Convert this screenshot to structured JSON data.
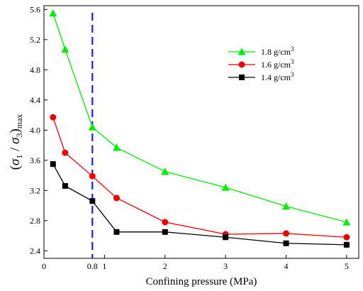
{
  "chart_data": {
    "type": "line",
    "title": "",
    "xlabel": "Confining pressure (MPa)",
    "ylabel": {
      "paren_open": "(",
      "sigma1": "σ",
      "sub1": "1",
      "slash": " / ",
      "sigma3": "σ",
      "sub3": "3",
      "paren_close": ")",
      "sub_max": "max"
    },
    "xlim": [
      0,
      5.2
    ],
    "ylim": [
      2.3,
      5.65
    ],
    "xticks": [
      {
        "value": 0,
        "label": "0"
      },
      {
        "value": 0.8,
        "label": "0.8"
      },
      {
        "value": 1,
        "label": "1"
      },
      {
        "value": 2,
        "label": "2"
      },
      {
        "value": 3,
        "label": "3"
      },
      {
        "value": 4,
        "label": "4"
      },
      {
        "value": 5,
        "label": "5"
      }
    ],
    "yticks": [
      {
        "value": 2.4,
        "label": "2.4"
      },
      {
        "value": 2.8,
        "label": "2.8"
      },
      {
        "value": 3.2,
        "label": "3.2"
      },
      {
        "value": 3.6,
        "label": "3.6"
      },
      {
        "value": 4.0,
        "label": "4.0"
      },
      {
        "value": 4.4,
        "label": "4.4"
      },
      {
        "value": 4.8,
        "label": "4.8"
      },
      {
        "value": 5.2,
        "label": "5.2"
      },
      {
        "value": 5.6,
        "label": "5.6"
      }
    ],
    "grid": false,
    "legend_position": "top-right",
    "reference_line": {
      "x": 0.8,
      "color": "#1a1aff",
      "style": "dashed"
    },
    "series": [
      {
        "name": "1.8 g/cm",
        "unit_superscript": "3",
        "marker": "triangle",
        "color": "#00ee00",
        "x": [
          0.15,
          0.35,
          0.8,
          1.2,
          2,
          3,
          4,
          5
        ],
        "y": [
          5.55,
          5.07,
          4.04,
          3.77,
          3.45,
          3.24,
          2.99,
          2.78
        ]
      },
      {
        "name": "1.6 g/cm",
        "unit_superscript": "3",
        "marker": "circle",
        "color": "#ee0000",
        "x": [
          0.15,
          0.35,
          0.8,
          1.2,
          2,
          3,
          4,
          5
        ],
        "y": [
          4.17,
          3.7,
          3.39,
          3.1,
          2.78,
          2.62,
          2.63,
          2.58
        ]
      },
      {
        "name": "1.4 g/cm",
        "unit_superscript": "3",
        "marker": "square",
        "color": "#000000",
        "x": [
          0.15,
          0.35,
          0.8,
          1.2,
          2,
          3,
          4,
          5
        ],
        "y": [
          3.55,
          3.26,
          3.06,
          2.65,
          2.65,
          2.58,
          2.5,
          2.48
        ]
      }
    ]
  }
}
